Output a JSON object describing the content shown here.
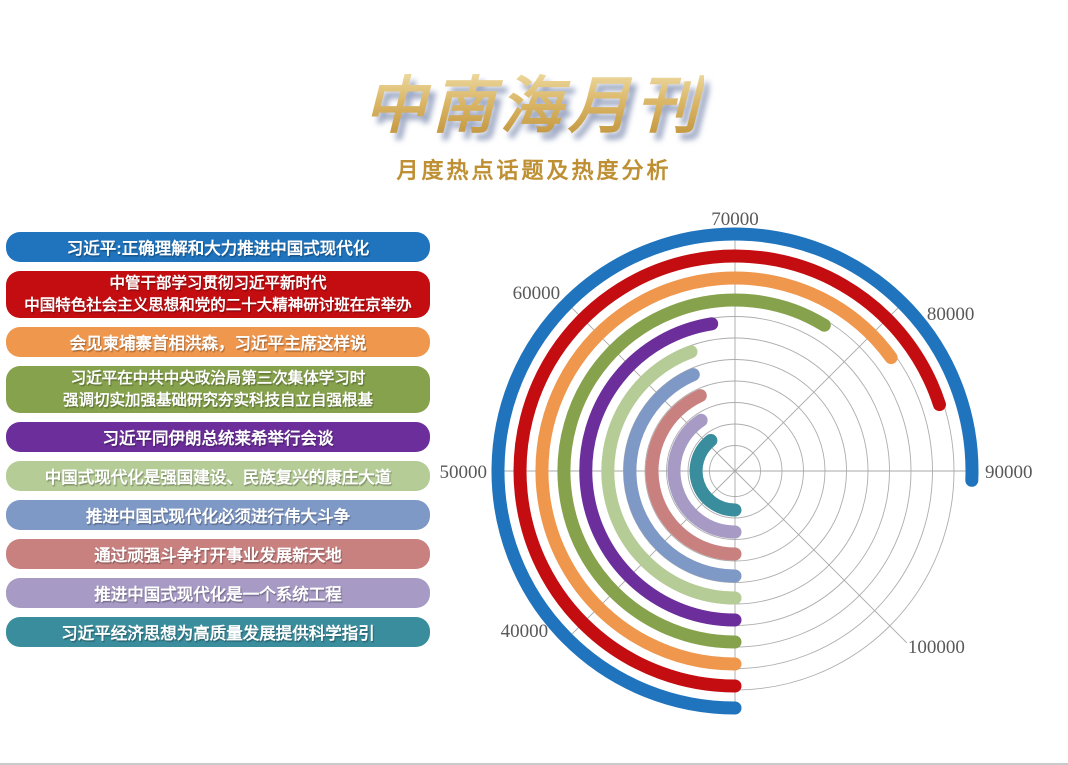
{
  "header": {
    "title": "中南海月刊",
    "subtitle": "月度热点话题及热度分析"
  },
  "topics": [
    {
      "rank": 1,
      "color": "#1F74BD",
      "lines": [
        "习近平:正确理解和大力推进中国式现代化"
      ],
      "heat": 90500
    },
    {
      "rank": 2,
      "color": "#C40D11",
      "lines": [
        "中管干部学习贯彻习近平新时代",
        "中国特色社会主义思想和党的二十大精神研讨班在京举办"
      ],
      "heat": 86000
    },
    {
      "rank": 3,
      "color": "#F0974E",
      "lines": [
        "会见柬埔寨首相洪森，习近平主席这样说"
      ],
      "heat": 82000
    },
    {
      "rank": 4,
      "color": "#86A24C",
      "lines": [
        "习近平在中共中央政治局第三次集体学习时",
        "强调切实加强基础研究夯实科技自立自强根基"
      ],
      "heat": 77000
    },
    {
      "rank": 5,
      "color": "#6C2E9B",
      "lines": [
        "习近平同伊朗总统莱希举行会谈"
      ],
      "heat": 68000
    },
    {
      "rank": 6,
      "color": "#B5CC96",
      "lines": [
        "中国式现代化是强国建设、民族复兴的康庄大道"
      ],
      "heat": 65500
    },
    {
      "rank": 7,
      "color": "#7F99C7",
      "lines": [
        "推进中国式现代化必须进行伟大斗争"
      ],
      "heat": 64800
    },
    {
      "rank": 8,
      "color": "#C98180",
      "lines": [
        "通过顽强斗争打开事业发展新天地"
      ],
      "heat": 64500
    },
    {
      "rank": 9,
      "color": "#A79AC5",
      "lines": [
        "推进中国式现代化是一个系统工程"
      ],
      "heat": 62500
    },
    {
      "rank": 10,
      "color": "#3A8D9D",
      "lines": [
        "习近平经济思想为高质量发展提供科学指引"
      ],
      "heat": 61500
    }
  ],
  "chart_data": {
    "type": "bar",
    "variant": "polar-radial-bars",
    "title": "月度热点话题及热度分析",
    "categories": [
      "习近平:正确理解和大力推进中国式现代化",
      "中管干部学习贯彻习近平新时代 中国特色社会主义思想和党的二十大精神研讨班在京举办",
      "会见柬埔寨首相洪森，习近平主席这样说",
      "习近平在中共中央政治局第三次集体学习时 强调切实加强基础研究夯实科技自立自强根基",
      "习近平同伊朗总统莱希举行会谈",
      "中国式现代化是强国建设、民族复兴的康庄大道",
      "推进中国式现代化必须进行伟大斗争",
      "通过顽强斗争打开事业发展新天地",
      "推进中国式现代化是一个系统工程",
      "习近平经济思想为高质量发展提供科学指引"
    ],
    "values": [
      90500,
      86000,
      82000,
      77000,
      68000,
      65500,
      64800,
      64500,
      62500,
      61500
    ],
    "colors": [
      "#1F74BD",
      "#C40D11",
      "#F0974E",
      "#86A24C",
      "#6C2E9B",
      "#B5CC96",
      "#7F99C7",
      "#C98180",
      "#A79AC5",
      "#3A8D9D"
    ],
    "axis": {
      "min": 30000,
      "max": 110000,
      "ticks": [
        40000,
        50000,
        60000,
        70000,
        80000,
        90000,
        100000
      ],
      "tick_angles_deg_cw_from_top": [
        225,
        270,
        315,
        0,
        45,
        90,
        135
      ],
      "value_per_45deg": 10000,
      "bars_start_angle_deg": 180,
      "direction": "clockwise",
      "grid": "10 concentric circles + 8 spokes every 45deg",
      "legend_position": "left stacked bars"
    }
  }
}
